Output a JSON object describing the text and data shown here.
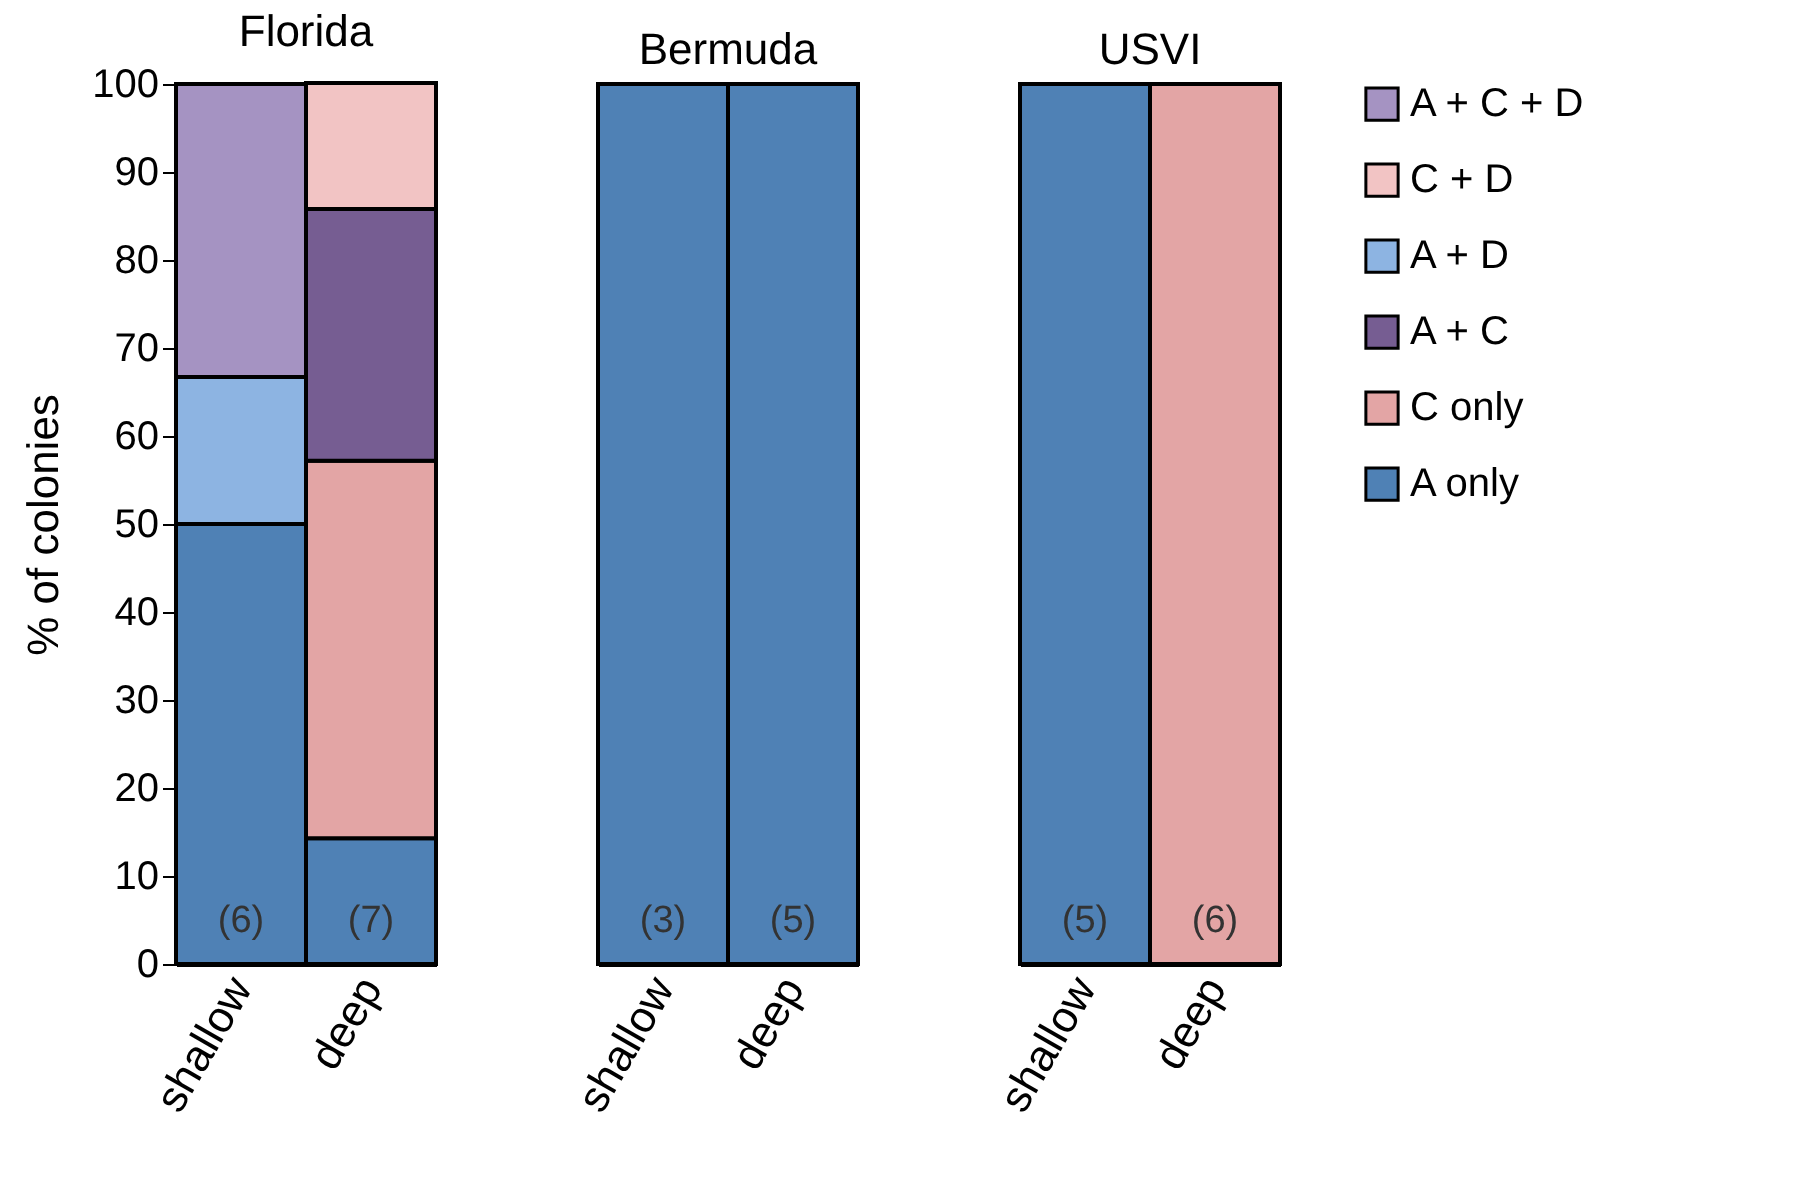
{
  "chart_data": [
    {
      "type": "bar",
      "stacked": true,
      "title": "Florida",
      "ylabel": "% of colonies",
      "categories": [
        "shallow",
        "deep"
      ],
      "ylim": [
        0,
        100
      ],
      "yticks": [
        0,
        10,
        20,
        30,
        40,
        50,
        60,
        70,
        80,
        90,
        100
      ],
      "legend": "right",
      "series": [
        {
          "name": "A only",
          "color": "#4f81b5",
          "values": [
            50,
            14.3
          ]
        },
        {
          "name": "C only",
          "color": "#e3a5a5",
          "values": [
            null,
            42.9
          ]
        },
        {
          "name": "A + C",
          "color": "#765d92",
          "values": [
            null,
            28.6
          ]
        },
        {
          "name": "A + D",
          "color": "#8db4e2",
          "values": [
            16.7,
            null
          ]
        },
        {
          "name": "C + D",
          "color": "#f2c4c4",
          "values": [
            null,
            14.3
          ]
        },
        {
          "name": "A + C + D",
          "color": "#a593c2",
          "values": [
            33.3,
            null
          ]
        }
      ],
      "annotations": [
        "(6)",
        "(7)"
      ]
    },
    {
      "type": "bar",
      "stacked": true,
      "title": "Bermuda",
      "categories": [
        "shallow",
        "deep"
      ],
      "ylim": [
        0,
        100
      ],
      "tick_labels": "x",
      "series": [
        {
          "name": "A only",
          "color": "#4f81b5",
          "values": [
            100,
            100
          ]
        }
      ],
      "annotations": [
        "(3)",
        "(5)"
      ]
    },
    {
      "type": "bar",
      "stacked": true,
      "title": "USVI",
      "categories": [
        "shallow",
        "deep"
      ],
      "ylim": [
        0,
        100
      ],
      "tick_labels": "x",
      "series": [
        {
          "name": "A only",
          "color": "#4f81b5",
          "values": [
            100,
            null
          ]
        },
        {
          "name": "C only",
          "color": "#e3a5a5",
          "values": [
            null,
            100
          ]
        }
      ],
      "annotations": [
        "(5)",
        "(6)"
      ]
    }
  ]
}
